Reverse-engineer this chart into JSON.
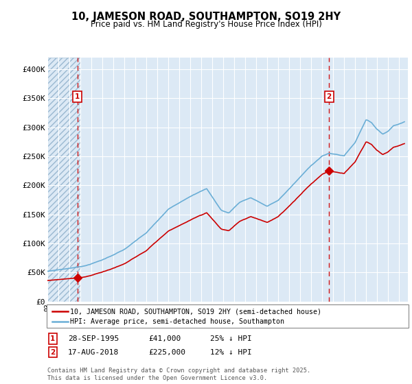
{
  "title": "10, JAMESON ROAD, SOUTHAMPTON, SO19 2HY",
  "subtitle": "Price paid vs. HM Land Registry's House Price Index (HPI)",
  "ylabel_ticks": [
    "£0",
    "£50K",
    "£100K",
    "£150K",
    "£200K",
    "£250K",
    "£300K",
    "£350K",
    "£400K"
  ],
  "ylim": [
    0,
    420000
  ],
  "xlim_start": 1993.0,
  "xlim_end": 2025.8,
  "hpi_color": "#6aaed6",
  "price_color": "#cc0000",
  "marker_color": "#cc0000",
  "vline_color": "#cc0000",
  "bg_color": "#dce9f5",
  "grid_color": "#ffffff",
  "sale1_x": 1995.74,
  "sale1_y": 41000,
  "sale2_x": 2018.63,
  "sale2_y": 225000,
  "sale1_label": "28-SEP-1995",
  "sale1_price": "£41,000",
  "sale1_note": "25% ↓ HPI",
  "sale2_label": "17-AUG-2018",
  "sale2_price": "£225,000",
  "sale2_note": "12% ↓ HPI",
  "legend_line1": "10, JAMESON ROAD, SOUTHAMPTON, SO19 2HY (semi-detached house)",
  "legend_line2": "HPI: Average price, semi-detached house, Southampton",
  "footer": "Contains HM Land Registry data © Crown copyright and database right 2025.\nThis data is licensed under the Open Government Licence v3.0."
}
